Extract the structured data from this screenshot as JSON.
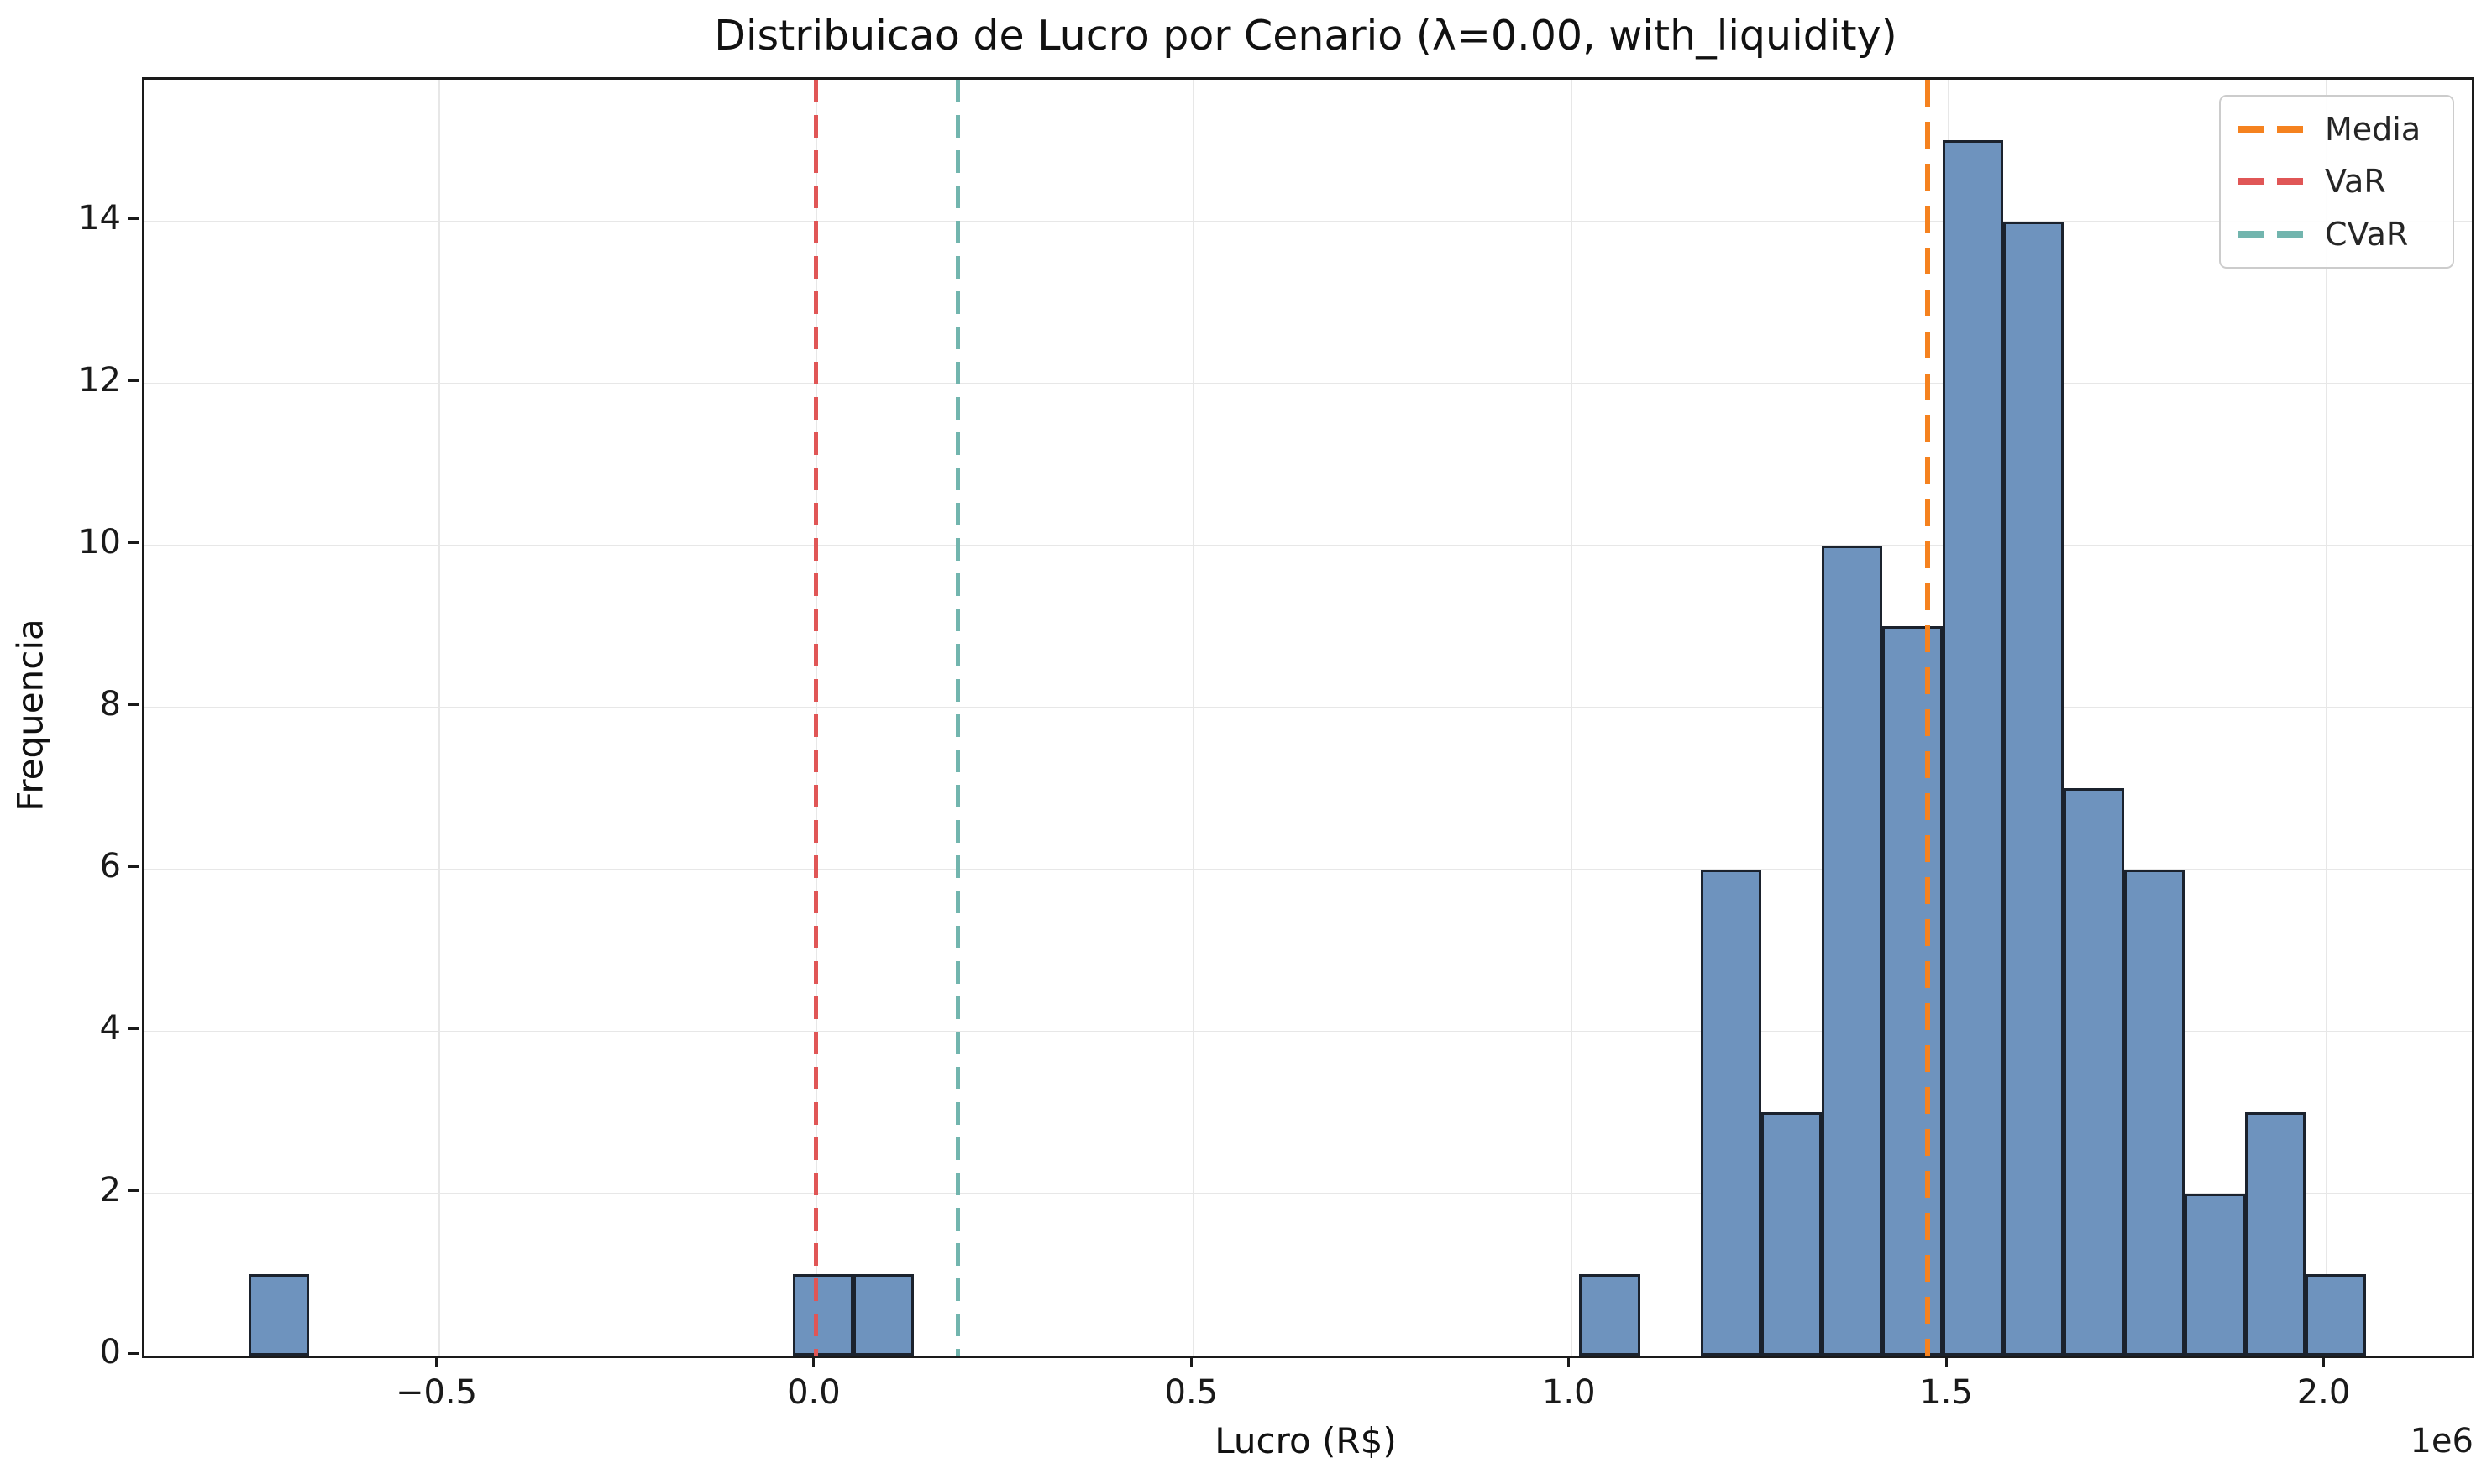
{
  "figure": {
    "title": "Distribuicao de Lucro por Cenario (λ=0.00, with_liquidity)",
    "xlabel": "Lucro (R$)",
    "ylabel": "Frequencia",
    "offset_text": "1e6"
  },
  "colors": {
    "bar_fill": "#6e93be",
    "bar_edge": "#1b222d",
    "grid": "#e7e7e7",
    "spine": "#1a1a1a",
    "media_line": "#f5821f",
    "var_line": "#e05656",
    "cvar_line": "#72b5ae",
    "legend_border": "#cccccc"
  },
  "chart_data": {
    "type": "bar",
    "subtype": "histogram",
    "title": "Distribuicao de Lucro por Cenario (λ=0.00, with_liquidity)",
    "xlabel": "Lucro (R$)",
    "ylabel": "Frequencia",
    "x_axis_offset_label": "1e6",
    "xlim": [
      -890000,
      2193000
    ],
    "ylim": [
      0,
      15.75
    ],
    "grid": true,
    "x_ticks": [
      -500000,
      0,
      500000,
      1000000,
      1500000,
      2000000
    ],
    "x_tick_labels": [
      "−0.5",
      "0.0",
      "0.5",
      "1.0",
      "1.5",
      "2.0"
    ],
    "y_ticks": [
      0,
      2,
      4,
      6,
      8,
      10,
      12,
      14
    ],
    "y_tick_labels": [
      "0",
      "2",
      "4",
      "6",
      "8",
      "10",
      "12",
      "14"
    ],
    "bin_start": -752000,
    "bin_width": 80130,
    "counts": [
      1,
      0,
      0,
      0,
      0,
      0,
      0,
      0,
      0,
      1,
      1,
      0,
      0,
      0,
      0,
      0,
      0,
      0,
      0,
      0,
      0,
      0,
      1,
      0,
      6,
      3,
      10,
      9,
      15,
      14,
      7,
      6,
      2,
      3,
      1
    ],
    "vlines": [
      {
        "name": "Media",
        "value": 1472000,
        "color": "#f5821f",
        "width": 6,
        "dash": 32,
        "gap": 18
      },
      {
        "name": "VaR",
        "value": 0,
        "color": "#e05656",
        "width": 5,
        "dash": 27,
        "gap": 15
      },
      {
        "name": "CVaR",
        "value": 187000,
        "color": "#72b5ae",
        "width": 5,
        "dash": 27,
        "gap": 15
      }
    ],
    "legend": {
      "position": "upper right",
      "entries": [
        {
          "label": "Media",
          "color": "#f5821f"
        },
        {
          "label": "VaR",
          "color": "#e05656"
        },
        {
          "label": "CVaR",
          "color": "#72b5ae"
        }
      ]
    }
  }
}
